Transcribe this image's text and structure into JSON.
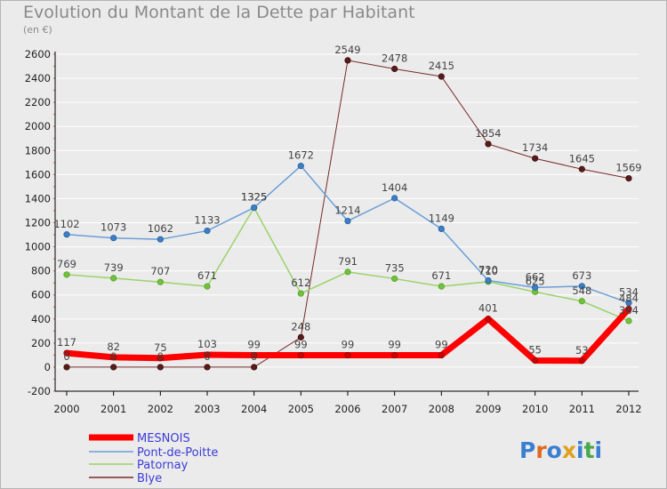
{
  "title": "Evolution du Montant de la Dette par Habitant",
  "subtitle": "(en €)",
  "logo": {
    "text": "Proxiti",
    "colors": [
      "#3a7fd0",
      "#e06a1c",
      "#3a7fd0",
      "#e0a11c",
      "#3a7fd0",
      "#4aa84a",
      "#3a7fd0"
    ]
  },
  "chart_data": {
    "type": "line",
    "title": "Evolution du Montant de la Dette par Habitant",
    "ylabel": "(en €)",
    "xlabel": "",
    "x": [
      "2000",
      "2001",
      "2002",
      "2003",
      "2004",
      "2005",
      "2006",
      "2007",
      "2008",
      "2009",
      "2010",
      "2011",
      "2012"
    ],
    "ylim": [
      -200,
      2600
    ],
    "yticks": [
      -200,
      0,
      200,
      400,
      600,
      800,
      1000,
      1200,
      1400,
      1600,
      1800,
      2000,
      2200,
      2400,
      2600
    ],
    "grid": "horizontal",
    "legend_position": "bottom-left",
    "series": [
      {
        "name": "Blye",
        "color": "#7a2a2a",
        "width": 1,
        "values": [
          0,
          0,
          0,
          0,
          0,
          248,
          2549,
          2478,
          2415,
          1854,
          1734,
          1645,
          1569
        ]
      },
      {
        "name": "Patornay",
        "color": "#9ad36a",
        "width": 1.5,
        "values": [
          769,
          739,
          707,
          671,
          1325,
          612,
          791,
          735,
          671,
          710,
          625,
          548,
          384
        ]
      },
      {
        "name": "Pont-de-Poitte",
        "color": "#6a9fd8",
        "width": 1.5,
        "values": [
          1102,
          1073,
          1062,
          1133,
          1325,
          1672,
          1214,
          1404,
          1149,
          720,
          662,
          673,
          534
        ]
      },
      {
        "name": "MESNOIS",
        "color": "#ff0000",
        "width": 7,
        "values": [
          117,
          82,
          75,
          103,
          99,
          99,
          99,
          99,
          99,
          401,
          55,
          53,
          484
        ]
      }
    ],
    "legend": [
      "MESNOIS",
      "Pont-de-Poitte",
      "Patornay",
      "Blye"
    ]
  }
}
